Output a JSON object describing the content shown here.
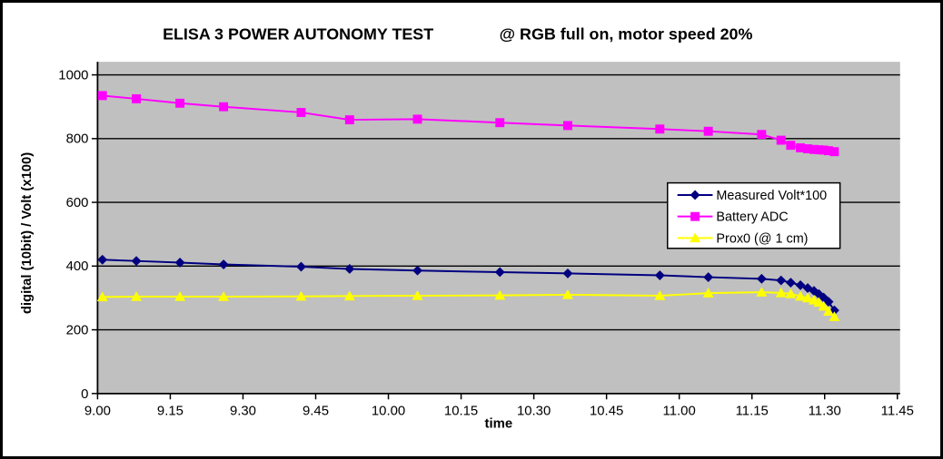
{
  "chart_data": {
    "type": "line",
    "title": "ELISA 3 POWER AUTONOMY TEST",
    "subtitle": "@ RGB full on, motor speed 20%",
    "xlabel": "time",
    "ylabel": "digital (10bit) / Volt (x100)",
    "plot_background": "#c0c0c0",
    "gridline_color": "#000000",
    "grid": true,
    "x_axis": {
      "tick_labels": [
        "9.00",
        "9.15",
        "9.30",
        "9.45",
        "10.00",
        "10.15",
        "10.30",
        "10.45",
        "11.00",
        "11.15",
        "11.30",
        "11.45"
      ],
      "tick_minutes": [
        0,
        15,
        30,
        45,
        60,
        75,
        90,
        105,
        120,
        135,
        150,
        165
      ]
    },
    "y_axis": {
      "ticks": [
        0,
        200,
        400,
        600,
        800,
        1000
      ],
      "range": [
        0,
        1041
      ]
    },
    "points": {
      "time_labels": [
        "9.01",
        "9.08",
        "9.17",
        "9.26",
        "9.42",
        "9.52",
        "10.06",
        "10.23",
        "10.37",
        "10.56",
        "11.06",
        "11.17",
        "11.21",
        "11.23",
        "11.25",
        "11.26",
        "11.27",
        "11.28",
        "11.29",
        "11.30",
        "11.32"
      ],
      "minutes": [
        1,
        8,
        17,
        26,
        42,
        52,
        66,
        83,
        97,
        116,
        126,
        137,
        141,
        143,
        145,
        146.5,
        147.8,
        148.8,
        149.8,
        150.8,
        152
      ]
    },
    "legend": {
      "position": "middle-right",
      "background": "#ffffff",
      "border_color": "#000000"
    },
    "series": [
      {
        "name": "Measured Volt*100",
        "color": "#000080",
        "marker": "diamond",
        "values": [
          420,
          416,
          411,
          405,
          398,
          391,
          386,
          381,
          377,
          371,
          365,
          360,
          355,
          348,
          340,
          331,
          322,
          312,
          301,
          288,
          261
        ]
      },
      {
        "name": "Battery ADC",
        "color": "#ff00ff",
        "marker": "square",
        "values": [
          935,
          925,
          911,
          900,
          882,
          859,
          861,
          850,
          841,
          830,
          823,
          813,
          795,
          779,
          771,
          768,
          766,
          765,
          764,
          762,
          759
        ]
      },
      {
        "name": "Prox0 (@ 1 cm)",
        "color": "#ffff00",
        "marker": "triangle",
        "values": [
          303,
          304,
          304,
          304,
          305,
          306,
          307,
          308,
          310,
          307,
          315,
          318,
          316,
          313,
          305,
          300,
          293,
          286,
          274,
          258,
          241
        ]
      }
    ]
  }
}
